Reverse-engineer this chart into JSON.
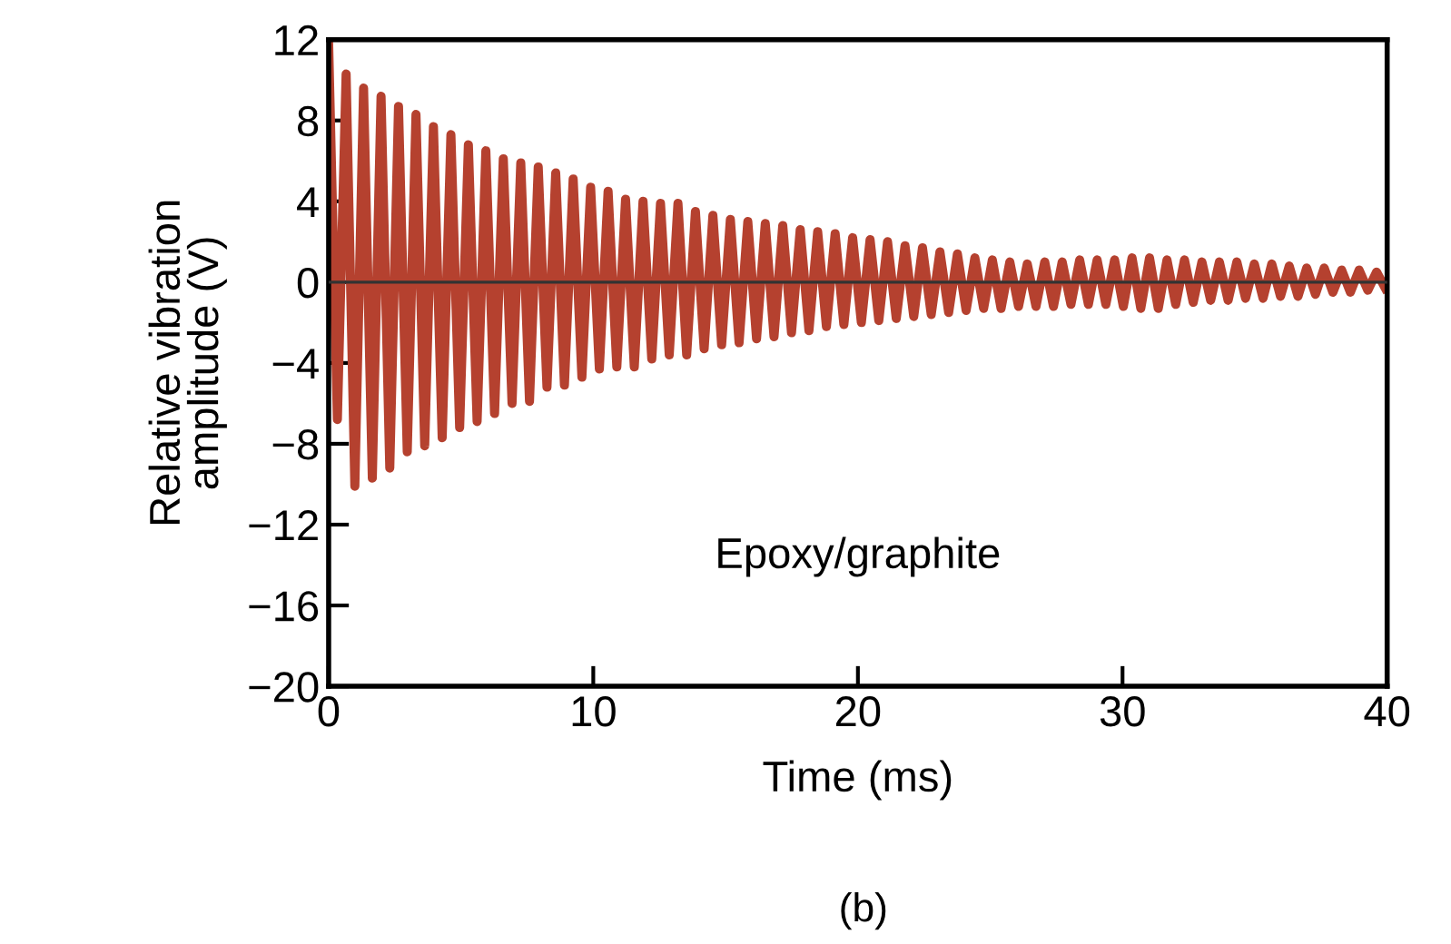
{
  "chart_data": {
    "type": "line",
    "xlabel": "Time (ms)",
    "ylabel": "Relative vibration\namplitude (V)",
    "annotations": [
      "Epoxy/graphite",
      "(b)"
    ],
    "xlim": [
      0,
      40
    ],
    "xticks": [
      0,
      10,
      20,
      30,
      40
    ],
    "ylim": [
      -20,
      12
    ],
    "yticks": [
      -20,
      -16,
      -12,
      -8,
      -4,
      0,
      4,
      8,
      12
    ],
    "grid": false,
    "marker": "none",
    "line_style": "solid",
    "ref_lines": [
      {
        "axis": "y",
        "value": 0,
        "label": null,
        "color": "#333333"
      }
    ],
    "series": [
      {
        "color": "#b5412f",
        "x": [
          0.0,
          0.33,
          0.66,
          0.99,
          1.32,
          1.65,
          1.98,
          2.31,
          2.64,
          2.97,
          3.3,
          3.63,
          3.96,
          4.29,
          4.62,
          4.95,
          5.28,
          5.61,
          5.94,
          6.27,
          6.6,
          6.93,
          7.26,
          7.59,
          7.92,
          8.25,
          8.58,
          8.91,
          9.24,
          9.57,
          9.9,
          10.23,
          10.56,
          10.89,
          11.22,
          11.55,
          11.88,
          12.21,
          12.54,
          12.87,
          13.2,
          13.53,
          13.86,
          14.19,
          14.52,
          14.85,
          15.18,
          15.51,
          15.84,
          16.17,
          16.5,
          16.83,
          17.16,
          17.49,
          17.82,
          18.15,
          18.48,
          18.81,
          19.14,
          19.47,
          19.8,
          20.13,
          20.46,
          20.79,
          21.12,
          21.45,
          21.78,
          22.11,
          22.44,
          22.77,
          23.1,
          23.43,
          23.76,
          24.09,
          24.42,
          24.75,
          25.08,
          25.41,
          25.74,
          26.07,
          26.4,
          26.73,
          27.06,
          27.39,
          27.72,
          28.05,
          28.38,
          28.71,
          29.04,
          29.37,
          29.7,
          30.03,
          30.36,
          30.69,
          31.02,
          31.35,
          31.68,
          32.01,
          32.34,
          32.67,
          33.0,
          33.33,
          33.66,
          33.99,
          34.32,
          34.65,
          34.98,
          35.31,
          35.64,
          35.97,
          36.3,
          36.63,
          36.96,
          37.29,
          37.62,
          37.95,
          38.28,
          38.61,
          38.94,
          39.27,
          39.6,
          39.93
        ],
        "values": [
          11.8,
          -6.8,
          10.3,
          -10.1,
          9.6,
          -9.7,
          9.2,
          -9.2,
          8.7,
          -8.4,
          8.3,
          -8.1,
          7.7,
          -7.7,
          7.3,
          -7.2,
          6.8,
          -6.9,
          6.5,
          -6.5,
          6.1,
          -6.0,
          5.9,
          -5.9,
          5.7,
          -5.2,
          5.4,
          -5.1,
          5.1,
          -4.7,
          4.7,
          -4.3,
          4.5,
          -4.2,
          4.1,
          -4.2,
          4.0,
          -3.8,
          3.9,
          -3.6,
          3.9,
          -3.6,
          3.5,
          -3.3,
          3.3,
          -3.1,
          3.1,
          -3.0,
          3.0,
          -2.8,
          2.9,
          -2.7,
          2.8,
          -2.5,
          2.6,
          -2.4,
          2.5,
          -2.2,
          2.4,
          -2.1,
          2.2,
          -2.0,
          2.1,
          -1.9,
          2.0,
          -1.8,
          1.8,
          -1.7,
          1.7,
          -1.6,
          1.5,
          -1.5,
          1.4,
          -1.4,
          1.2,
          -1.3,
          1.1,
          -1.3,
          1.0,
          -1.2,
          0.9,
          -1.2,
          1.0,
          -1.2,
          1.0,
          -1.1,
          1.1,
          -1.1,
          1.1,
          -1.1,
          1.1,
          -1.2,
          1.2,
          -1.3,
          1.2,
          -1.3,
          1.1,
          -1.1,
          1.1,
          -1.0,
          1.0,
          -0.9,
          1.0,
          -0.9,
          1.0,
          -0.8,
          0.9,
          -0.8,
          0.9,
          -0.7,
          0.8,
          -0.7,
          0.7,
          -0.6,
          0.7,
          -0.5,
          0.6,
          -0.5,
          0.6,
          -0.4,
          0.5,
          -0.3
        ]
      }
    ]
  }
}
